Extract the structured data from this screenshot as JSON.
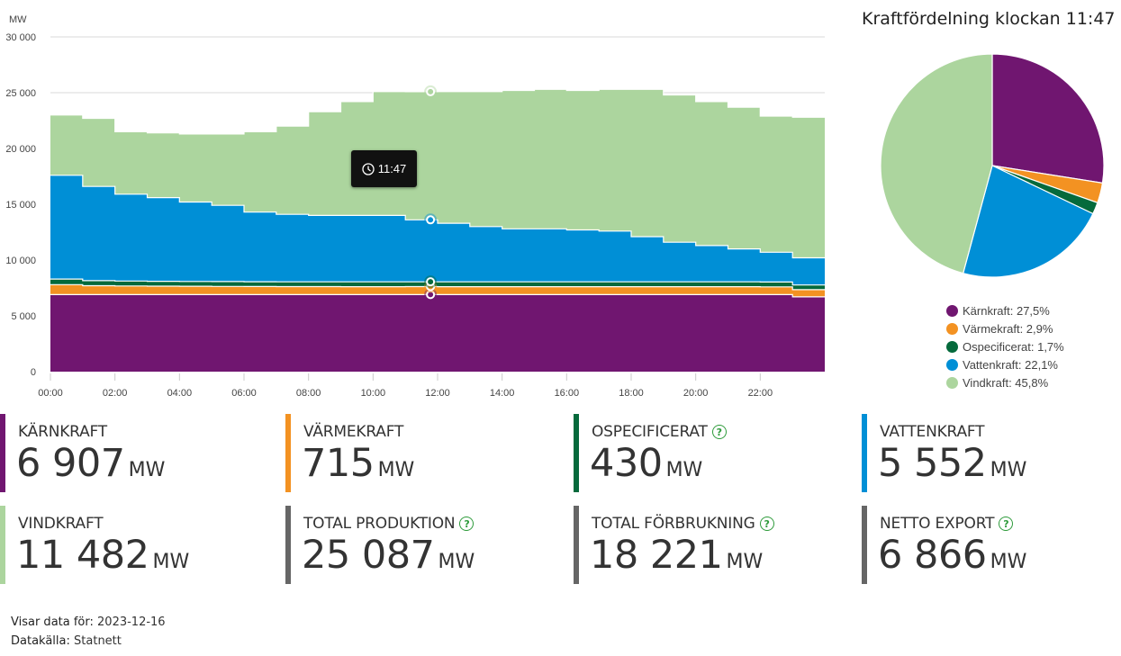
{
  "tooltip": {
    "time": "11:47",
    "icon": "clock-icon"
  },
  "pie": {
    "title": "Kraftfördelning klockan 11:47",
    "legend": [
      {
        "label": "Kärnkraft: 27,5%",
        "color": "#701670",
        "value": 27.5
      },
      {
        "label": "Värmekraft: 2,9%",
        "color": "#f39222",
        "value": 2.9
      },
      {
        "label": "Ospecificerat: 1,7%",
        "color": "#056a3c",
        "value": 1.7
      },
      {
        "label": "Vattenkraft: 22,1%",
        "color": "#008fd6",
        "value": 22.1
      },
      {
        "label": "Vindkraft: 45,8%",
        "color": "#acd59e",
        "value": 45.8
      }
    ]
  },
  "stats": [
    {
      "label": "KÄRNKRAFT",
      "value": "6 907",
      "unit": "MW",
      "color": "#701670",
      "help": false
    },
    {
      "label": "VÄRMEKRAFT",
      "value": "715",
      "unit": "MW",
      "color": "#f39222",
      "help": false
    },
    {
      "label": "OSPECIFICERAT",
      "value": "430",
      "unit": "MW",
      "color": "#056a3c",
      "help": true
    },
    {
      "label": "VATTENKRAFT",
      "value": "5 552",
      "unit": "MW",
      "color": "#008fd6",
      "help": false
    },
    {
      "label": "VINDKRAFT",
      "value": "11 482",
      "unit": "MW",
      "color": "#acd59e",
      "help": false
    },
    {
      "label": "TOTAL PRODUKTION",
      "value": "25 087",
      "unit": "MW",
      "color": "#666666",
      "help": true
    },
    {
      "label": "TOTAL FÖRBRUKNING",
      "value": "18 221",
      "unit": "MW",
      "color": "#666666",
      "help": true
    },
    {
      "label": "NETTO EXPORT",
      "value": "6 866",
      "unit": "MW",
      "color": "#666666",
      "help": true
    }
  ],
  "help_symbol": "?",
  "footer": {
    "date_label": "Visar data för:",
    "date_value": "2023-12-16",
    "source_label": "Datakälla:",
    "source_value": "Statnett"
  },
  "chart_data": [
    {
      "type": "area",
      "stacked": true,
      "title": "",
      "ylabel": "MW",
      "xlabel": "",
      "ylim": [
        0,
        30000
      ],
      "xlim_hours": [
        0,
        24
      ],
      "y_ticks": [
        0,
        5000,
        10000,
        15000,
        20000,
        25000,
        30000
      ],
      "y_tick_labels": [
        "0",
        "5 000",
        "10 000",
        "15 000",
        "20 000",
        "25 000",
        "30 000"
      ],
      "x_ticks": [
        0,
        2,
        4,
        6,
        8,
        10,
        12,
        14,
        16,
        18,
        20,
        22
      ],
      "x_tick_labels": [
        "00:00",
        "02:00",
        "04:00",
        "06:00",
        "08:00",
        "10:00",
        "12:00",
        "14:00",
        "16:00",
        "18:00",
        "20:00",
        "22:00"
      ],
      "grid": "horizontal",
      "marker_hour": 11.78,
      "x": [
        0,
        1,
        2,
        3,
        4,
        5,
        6,
        7,
        8,
        9,
        10,
        11,
        12,
        13,
        14,
        15,
        16,
        17,
        18,
        19,
        20,
        21,
        22,
        23,
        24
      ],
      "series": [
        {
          "name": "Kärnkraft",
          "color": "#701670",
          "values": [
            6900,
            6900,
            6900,
            6900,
            6900,
            6900,
            6900,
            6900,
            6900,
            6900,
            6900,
            6907,
            6900,
            6900,
            6900,
            6900,
            6900,
            6900,
            6900,
            6900,
            6900,
            6900,
            6900,
            6700,
            6100
          ]
        },
        {
          "name": "Värmekraft",
          "color": "#f39222",
          "values": [
            900,
            800,
            780,
            760,
            750,
            740,
            730,
            720,
            720,
            715,
            715,
            715,
            715,
            715,
            715,
            715,
            715,
            715,
            715,
            715,
            715,
            715,
            700,
            650,
            600
          ]
        },
        {
          "name": "Ospecificerat",
          "color": "#056a3c",
          "values": [
            500,
            450,
            440,
            440,
            430,
            430,
            430,
            430,
            430,
            430,
            430,
            430,
            430,
            430,
            430,
            430,
            430,
            430,
            430,
            430,
            430,
            430,
            430,
            420,
            420
          ]
        },
        {
          "name": "Vattenkraft",
          "color": "#008fd6",
          "values": [
            9300,
            8450,
            7780,
            7500,
            7120,
            6830,
            6240,
            6050,
            5950,
            5955,
            5955,
            5552,
            5255,
            4955,
            4755,
            4755,
            4655,
            4555,
            4055,
            3555,
            3255,
            2955,
            2670,
            2430,
            2980
          ]
        },
        {
          "name": "Vindkraft",
          "color": "#acd59e",
          "values": [
            5400,
            6100,
            5600,
            5800,
            6100,
            6400,
            7200,
            7900,
            9300,
            10200,
            11100,
            11482,
            11800,
            12100,
            12400,
            12500,
            12500,
            12700,
            13200,
            13200,
            12900,
            12700,
            12200,
            12600,
            11900
          ]
        }
      ]
    },
    {
      "type": "pie",
      "title": "Kraftfördelning klockan 11:47",
      "labels": [
        "Kärnkraft",
        "Värmekraft",
        "Ospecificerat",
        "Vattenkraft",
        "Vindkraft"
      ],
      "values": [
        27.5,
        2.9,
        1.7,
        22.1,
        45.8
      ],
      "colors": [
        "#701670",
        "#f39222",
        "#056a3c",
        "#008fd6",
        "#acd59e"
      ],
      "legend": "bottom"
    }
  ]
}
